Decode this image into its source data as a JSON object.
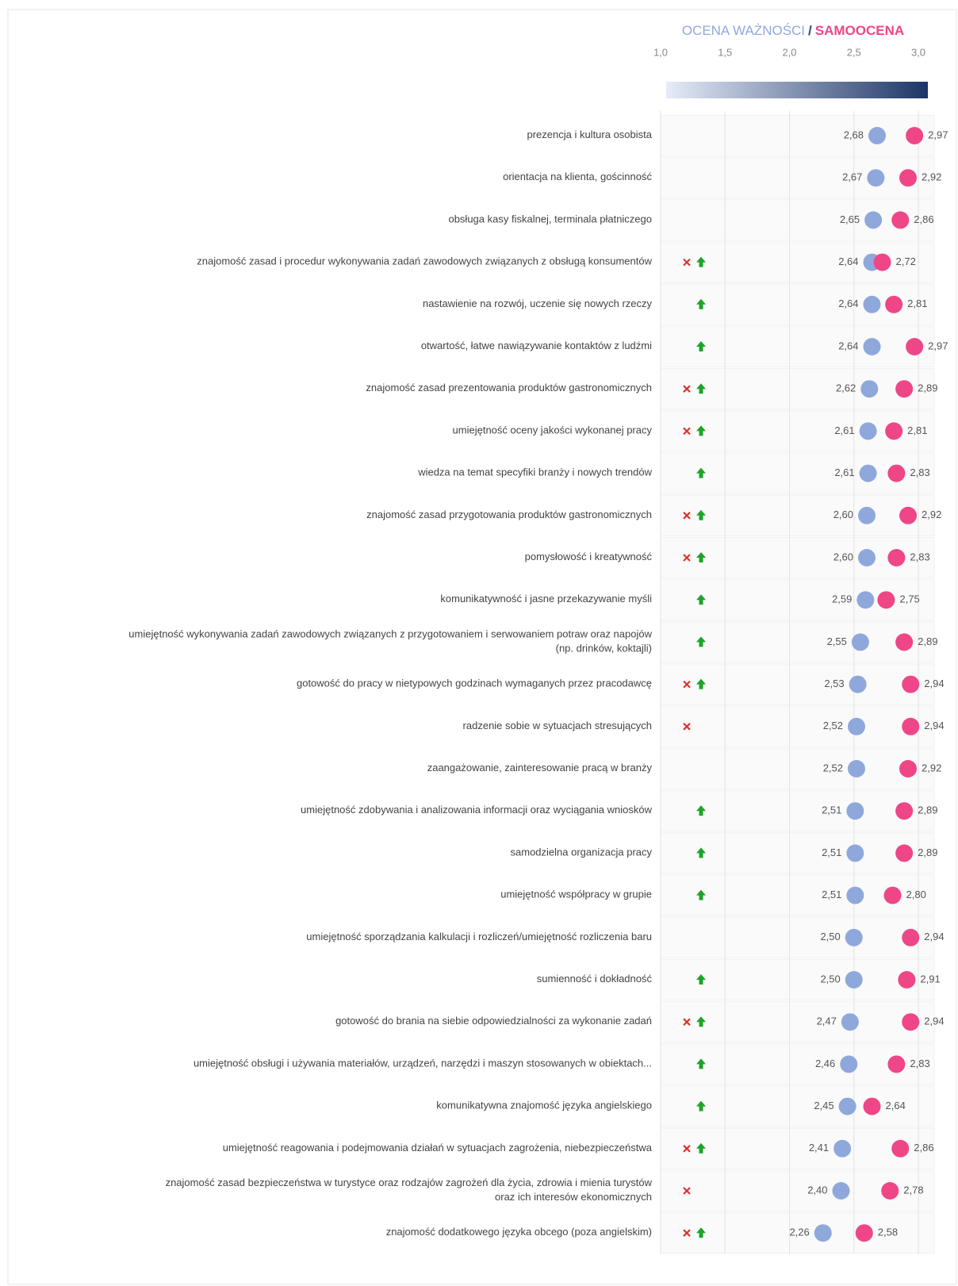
{
  "chart_data": {
    "type": "dot",
    "legend_separator": "/",
    "categories": [
      [
        "prezencja i kultura osobista"
      ],
      [
        "orientacja na klienta, gościnność"
      ],
      [
        "obsługa kasy fiskalnej, terminala płatniczego"
      ],
      [
        "znajomość zasad i procedur wykonywania zadań zawodowych związanych z obsługą konsumentów"
      ],
      [
        "nastawienie na rozwój, uczenie się nowych rzeczy"
      ],
      [
        "otwartość, łatwe nawiązywanie kontaktów z ludźmi"
      ],
      [
        "znajomość zasad prezentowania produktów gastronomicznych"
      ],
      [
        "umiejętność oceny jakości wykonanej pracy"
      ],
      [
        "wiedza na temat specyfiki branży i nowych trendów"
      ],
      [
        "znajomość zasad przygotowania produktów gastronomicznych"
      ],
      [
        "pomysłowość i kreatywność"
      ],
      [
        "komunikatywność i jasne przekazywanie myśli"
      ],
      [
        "umiejętność wykonywania zadań zawodowych związanych z przygotowaniem i serwowaniem potraw oraz napojów",
        "(np. drinków, koktajli)"
      ],
      [
        "gotowość do pracy w nietypowych godzinach wymaganych przez pracodawcę"
      ],
      [
        "radzenie sobie w sytuacjach stresujących"
      ],
      [
        "zaangażowanie, zainteresowanie pracą w branży"
      ],
      [
        "umiejętność zdobywania i analizowania informacji oraz wyciągania wniosków"
      ],
      [
        "samodzielna organizacja pracy"
      ],
      [
        "umiejętność współpracy w grupie"
      ],
      [
        "umiejętność sporządzania kalkulacji i rozliczeń/umiejętność rozliczenia baru"
      ],
      [
        "sumienność i dokładność"
      ],
      [
        "gotowość do brania na siebie odpowiedzialności za wykonanie zadań"
      ],
      [
        "umiejętność obsługi i używania materiałów, urządzeń, narzędzi i maszyn stosowanych w obiektach..."
      ],
      [
        "komunikatywna znajomość języka angielskiego"
      ],
      [
        "umiejętność reagowania i podejmowania działań w sytuacjach zagrożenia, niebezpieczeństwa"
      ],
      [
        "znajomość zasad bezpieczeństwa w turystyce oraz rodzajów zagrożeń dla życia, zdrowia i mienia turystów",
        "oraz ich interesów ekonomicznych"
      ],
      [
        "znajomość dodatkowego języka obcego (poza angielskim)"
      ]
    ],
    "series": [
      {
        "name": "OCENA WAŻNOŚCI",
        "color": "#8fa8dc",
        "values": [
          2.68,
          2.67,
          2.65,
          2.64,
          2.64,
          2.64,
          2.62,
          2.61,
          2.61,
          2.6,
          2.6,
          2.59,
          2.55,
          2.53,
          2.52,
          2.52,
          2.51,
          2.51,
          2.51,
          2.5,
          2.5,
          2.47,
          2.46,
          2.45,
          2.41,
          2.4,
          2.26
        ],
        "value_labels": [
          "2,68",
          "2,67",
          "2,65",
          "2,64",
          "2,64",
          "2,64",
          "2,62",
          "2,61",
          "2,61",
          "2,60",
          "2,60",
          "2,59",
          "2,55",
          "2,53",
          "2,52",
          "2,52",
          "2,51",
          "2,51",
          "2,51",
          "2,50",
          "2,50",
          "2,47",
          "2,46",
          "2,45",
          "2,41",
          "2,40",
          "2,26"
        ]
      },
      {
        "name": "SAMOOCENA",
        "color": "#ef4688",
        "values": [
          2.97,
          2.92,
          2.86,
          2.72,
          2.81,
          2.97,
          2.89,
          2.81,
          2.83,
          2.92,
          2.83,
          2.75,
          2.89,
          2.94,
          2.94,
          2.92,
          2.89,
          2.89,
          2.8,
          2.94,
          2.91,
          2.94,
          2.83,
          2.64,
          2.86,
          2.78,
          2.58
        ],
        "value_labels": [
          "2,97",
          "2,92",
          "2,86",
          "2,72",
          "2,81",
          "2,97",
          "2,89",
          "2,81",
          "2,83",
          "2,92",
          "2,83",
          "2,75",
          "2,89",
          "2,94",
          "2,94",
          "2,92",
          "2,89",
          "2,89",
          "2,80",
          "2,94",
          "2,91",
          "2,94",
          "2,83",
          "2,64",
          "2,86",
          "2,78",
          "2,58"
        ]
      }
    ],
    "icons": {
      "cross": [
        false,
        false,
        false,
        true,
        false,
        false,
        true,
        true,
        false,
        true,
        true,
        false,
        false,
        true,
        true,
        false,
        false,
        false,
        false,
        false,
        false,
        true,
        false,
        false,
        true,
        true,
        true
      ],
      "arrow": [
        false,
        false,
        false,
        true,
        true,
        true,
        true,
        true,
        true,
        true,
        true,
        true,
        true,
        true,
        false,
        false,
        true,
        true,
        true,
        false,
        true,
        true,
        true,
        true,
        true,
        false,
        true
      ],
      "cross_color": "#e0322f",
      "arrow_color": "#1fa32a"
    },
    "xlim": [
      1,
      3
    ],
    "xticks": [
      {
        "value": 1,
        "label": "1,0"
      },
      {
        "value": 1.5,
        "label": "1,5"
      },
      {
        "value": 2,
        "label": "2,0"
      },
      {
        "value": 2.5,
        "label": "2,5"
      },
      {
        "value": 3,
        "label": "3,0"
      }
    ],
    "grid": true
  }
}
